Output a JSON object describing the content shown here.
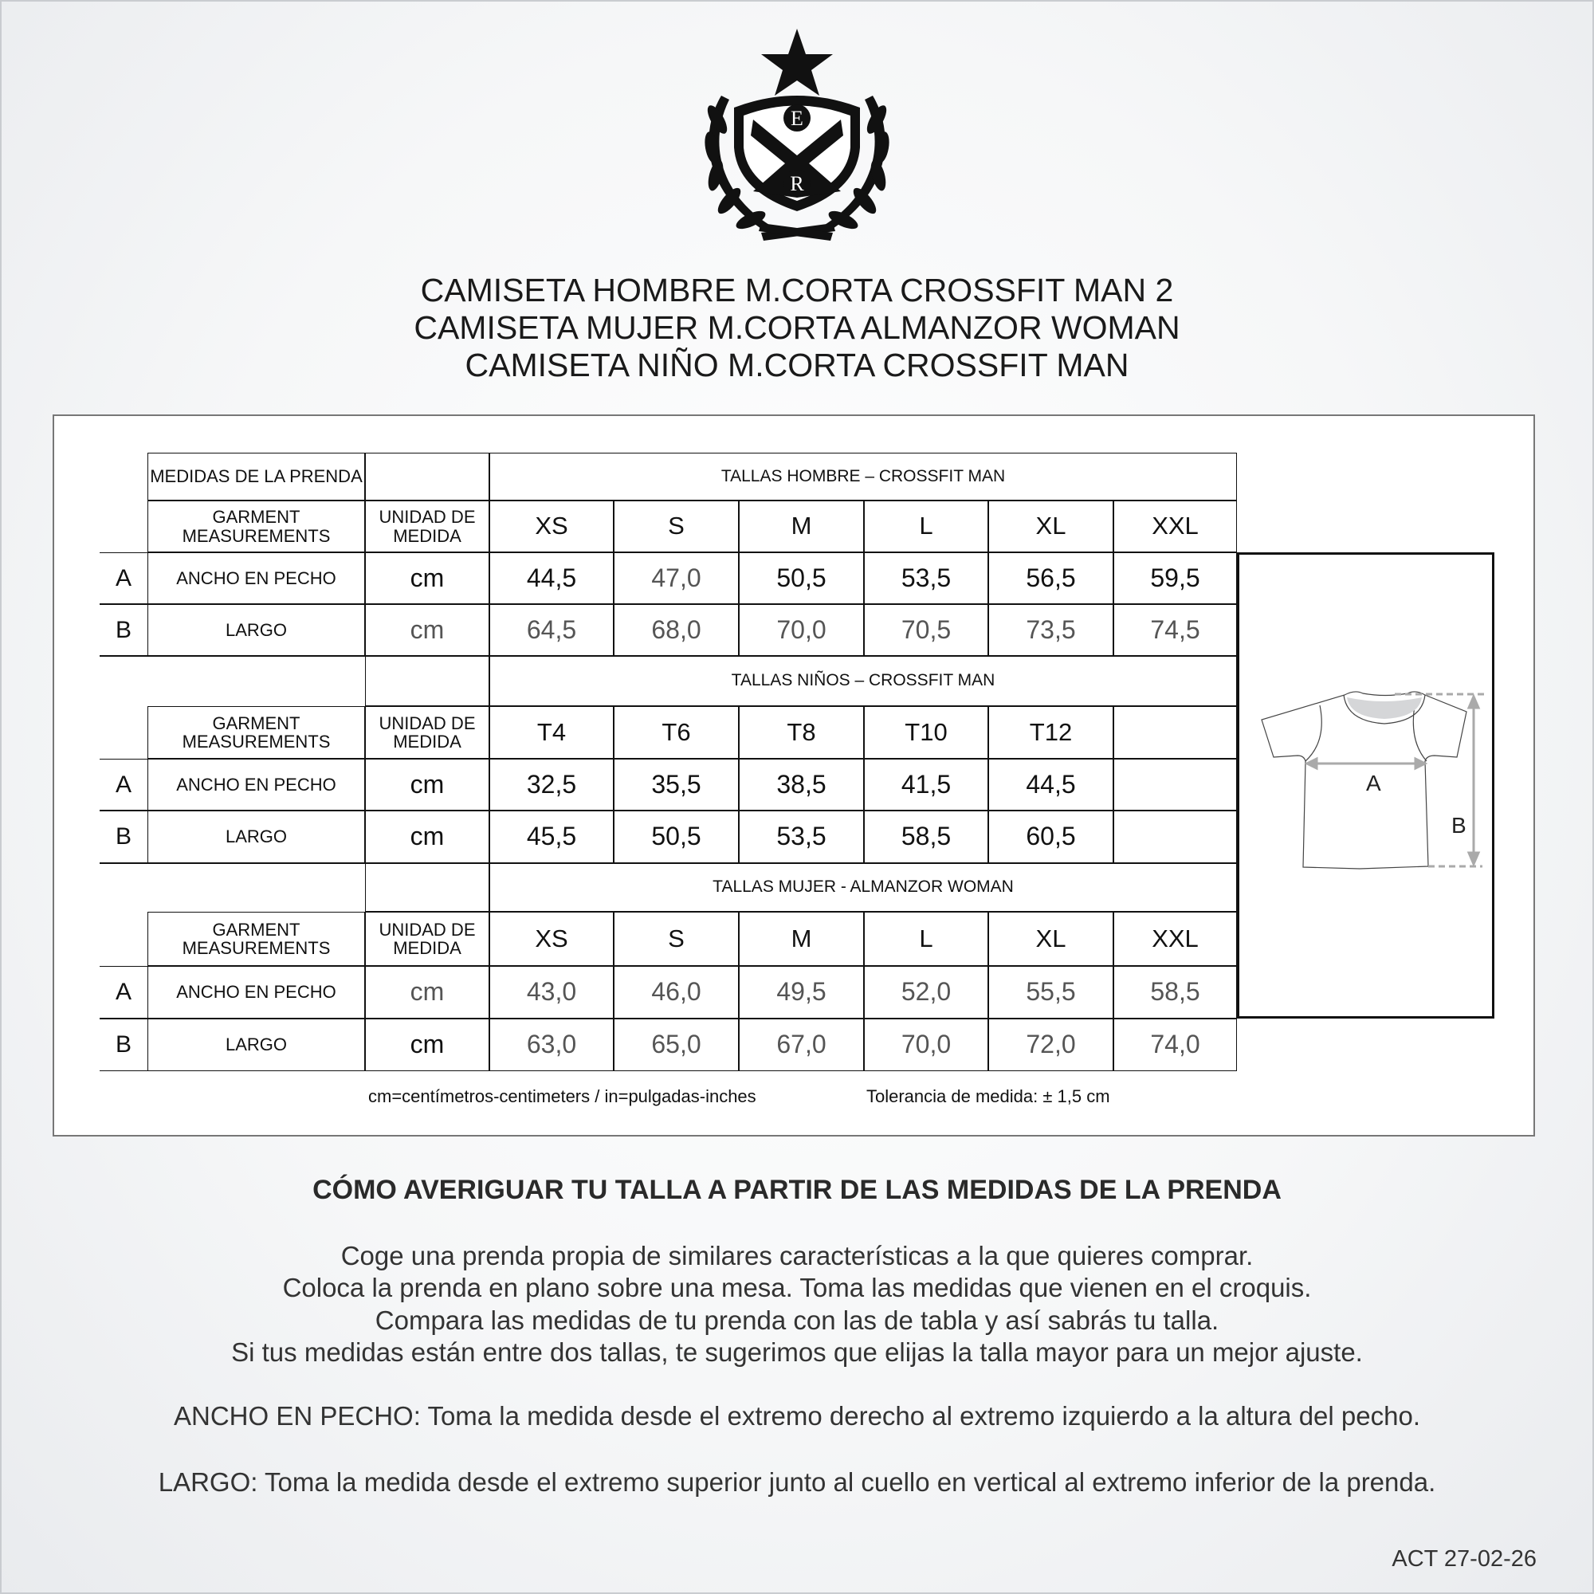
{
  "brand": {
    "logo_letters": [
      "E",
      "R"
    ]
  },
  "titles": [
    "CAMISETA HOMBRE M.CORTA CROSSFIT MAN 2",
    "CAMISETA MUJER M.CORTA ALMANZOR WOMAN",
    "CAMISETA NIÑO M.CORTA CROSSFIT MAN"
  ],
  "table": {
    "measures_header": "MEDIDAS DE LA PRENDA",
    "garment_header": "GARMENT MEASUREMENTS",
    "unit_header": "UNIDAD DE MEDIDA",
    "sections": [
      {
        "title": "TALLAS HOMBRE – CROSSFIT MAN",
        "sizes": [
          "XS",
          "S",
          "M",
          "L",
          "XL",
          "XXL"
        ],
        "rows": [
          {
            "letter": "A",
            "label": "ANCHO EN PECHO",
            "unit": "cm",
            "unit_muted": false,
            "values": [
              "44,5",
              "47,0",
              "50,5",
              "53,5",
              "56,5",
              "59,5"
            ],
            "muted": [
              false,
              true,
              false,
              false,
              false,
              false
            ]
          },
          {
            "letter": "B",
            "label": "LARGO",
            "unit": "cm",
            "unit_muted": true,
            "values": [
              "64,5",
              "68,0",
              "70,0",
              "70,5",
              "73,5",
              "74,5"
            ],
            "muted": [
              true,
              true,
              true,
              true,
              true,
              true
            ]
          }
        ]
      },
      {
        "title": "TALLAS NIÑOS – CROSSFIT MAN",
        "sizes": [
          "T4",
          "T6",
          "T8",
          "T10",
          "T12",
          ""
        ],
        "rows": [
          {
            "letter": "A",
            "label": "ANCHO EN PECHO",
            "unit": "cm",
            "unit_muted": false,
            "values": [
              "32,5",
              "35,5",
              "38,5",
              "41,5",
              "44,5",
              ""
            ],
            "muted": [
              false,
              false,
              false,
              false,
              false,
              false
            ]
          },
          {
            "letter": "B",
            "label": "LARGO",
            "unit": "cm",
            "unit_muted": false,
            "values": [
              "45,5",
              "50,5",
              "53,5",
              "58,5",
              "60,5",
              ""
            ],
            "muted": [
              false,
              false,
              false,
              false,
              false,
              false
            ]
          }
        ]
      },
      {
        "title": "TALLAS MUJER - ALMANZOR WOMAN",
        "sizes": [
          "XS",
          "S",
          "M",
          "L",
          "XL",
          "XXL"
        ],
        "rows": [
          {
            "letter": "A",
            "label": "ANCHO EN PECHO",
            "unit": "cm",
            "unit_muted": true,
            "values": [
              "43,0",
              "46,0",
              "49,5",
              "52,0",
              "55,5",
              "58,5"
            ],
            "muted": [
              true,
              true,
              true,
              true,
              true,
              true
            ]
          },
          {
            "letter": "B",
            "label": "LARGO",
            "unit": "cm",
            "unit_muted": false,
            "values": [
              "63,0",
              "65,0",
              "67,0",
              "70,0",
              "72,0",
              "74,0"
            ],
            "muted": [
              true,
              true,
              true,
              true,
              true,
              true
            ]
          }
        ]
      }
    ],
    "diagram": {
      "label_a": "A",
      "label_b": "B"
    },
    "note_units": "cm=centímetros-centimeters / in=pulgadas-inches",
    "note_tolerance": "Tolerancia de medida: ± 1,5 cm"
  },
  "howto": {
    "heading": "CÓMO AVERIGUAR TU TALLA A PARTIR DE LAS MEDIDAS DE LA PRENDA",
    "lines": [
      "Coge una prenda propia de similares características a la que quieres comprar.",
      "Coloca la prenda en plano sobre una mesa. Toma las medidas que vienen en el croquis.",
      "Compara las medidas de tu prenda con las de tabla y así sabrás tu talla.",
      "Si tus medidas están entre dos tallas, te sugerimos que elijas la talla mayor para un mejor ajuste."
    ],
    "chest": "ANCHO EN PECHO: Toma la medida desde el extremo derecho al extremo izquierdo a la altura del pecho.",
    "length": "LARGO: Toma la medida desde el extremo superior junto al cuello en vertical al extremo inferior de la prenda."
  },
  "footer": {
    "version": "ACT 27-02-26"
  }
}
